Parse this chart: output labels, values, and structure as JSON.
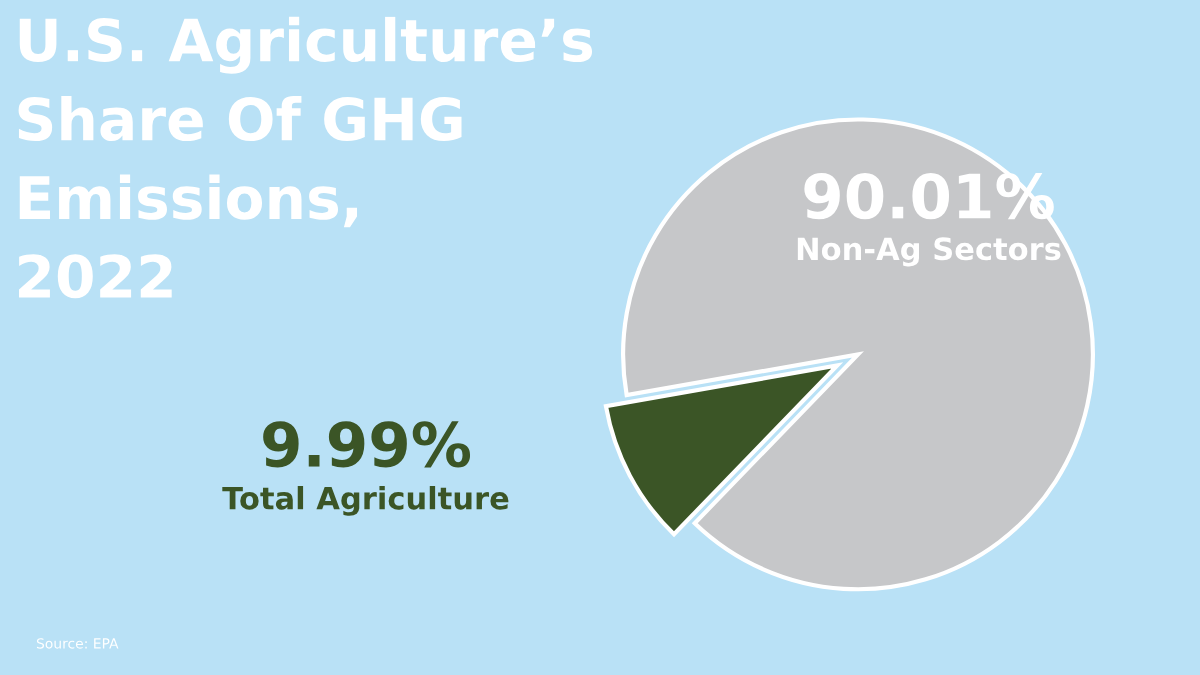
{
  "chart_data": {
    "type": "pie",
    "title": "U.S. Agriculture’s\nShare Of GHG\nEmissions,\n2022",
    "categories": [
      "Total Agriculture",
      "Non-Ag Sectors"
    ],
    "values": [
      9.99,
      90.01
    ],
    "colors": [
      "#3b5526",
      "#c6c7c9"
    ],
    "value_labels": [
      "9.99%",
      "90.01%"
    ],
    "annotations": [
      "Source: EPA"
    ],
    "legend": false
  }
}
